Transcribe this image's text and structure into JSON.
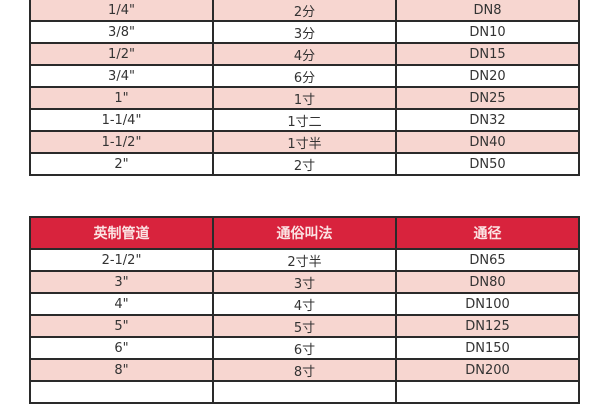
{
  "table_top": {
    "rows": [
      [
        "1/4\"",
        "2分",
        "DN8"
      ],
      [
        "3/8\"",
        "3分",
        "DN10"
      ],
      [
        "1/2\"",
        "4分",
        "DN15"
      ],
      [
        "3/4\"",
        "6分",
        "DN20"
      ],
      [
        "1\"",
        "1寸",
        "DN25"
      ],
      [
        "1-1/4\"",
        "1寸二",
        "DN32"
      ],
      [
        "1-1/2\"",
        "1寸半",
        "DN40"
      ],
      [
        "2\"",
        "2寸",
        "DN50"
      ]
    ]
  },
  "table_bottom": {
    "headers": [
      "英制管道",
      "通俗叫法",
      "通径"
    ],
    "rows": [
      [
        "2-1/2\"",
        "2寸半",
        "DN65"
      ],
      [
        "3\"",
        "3寸",
        "DN80"
      ],
      [
        "4\"",
        "4寸",
        "DN100"
      ],
      [
        "5\"",
        "5寸",
        "DN125"
      ],
      [
        "6\"",
        "6寸",
        "DN150"
      ],
      [
        "8\"",
        "8寸",
        "DN200"
      ],
      [
        "",
        "",
        ""
      ]
    ]
  },
  "colors": {
    "header": "#d8233d",
    "stripe": "#f7d6d0"
  }
}
